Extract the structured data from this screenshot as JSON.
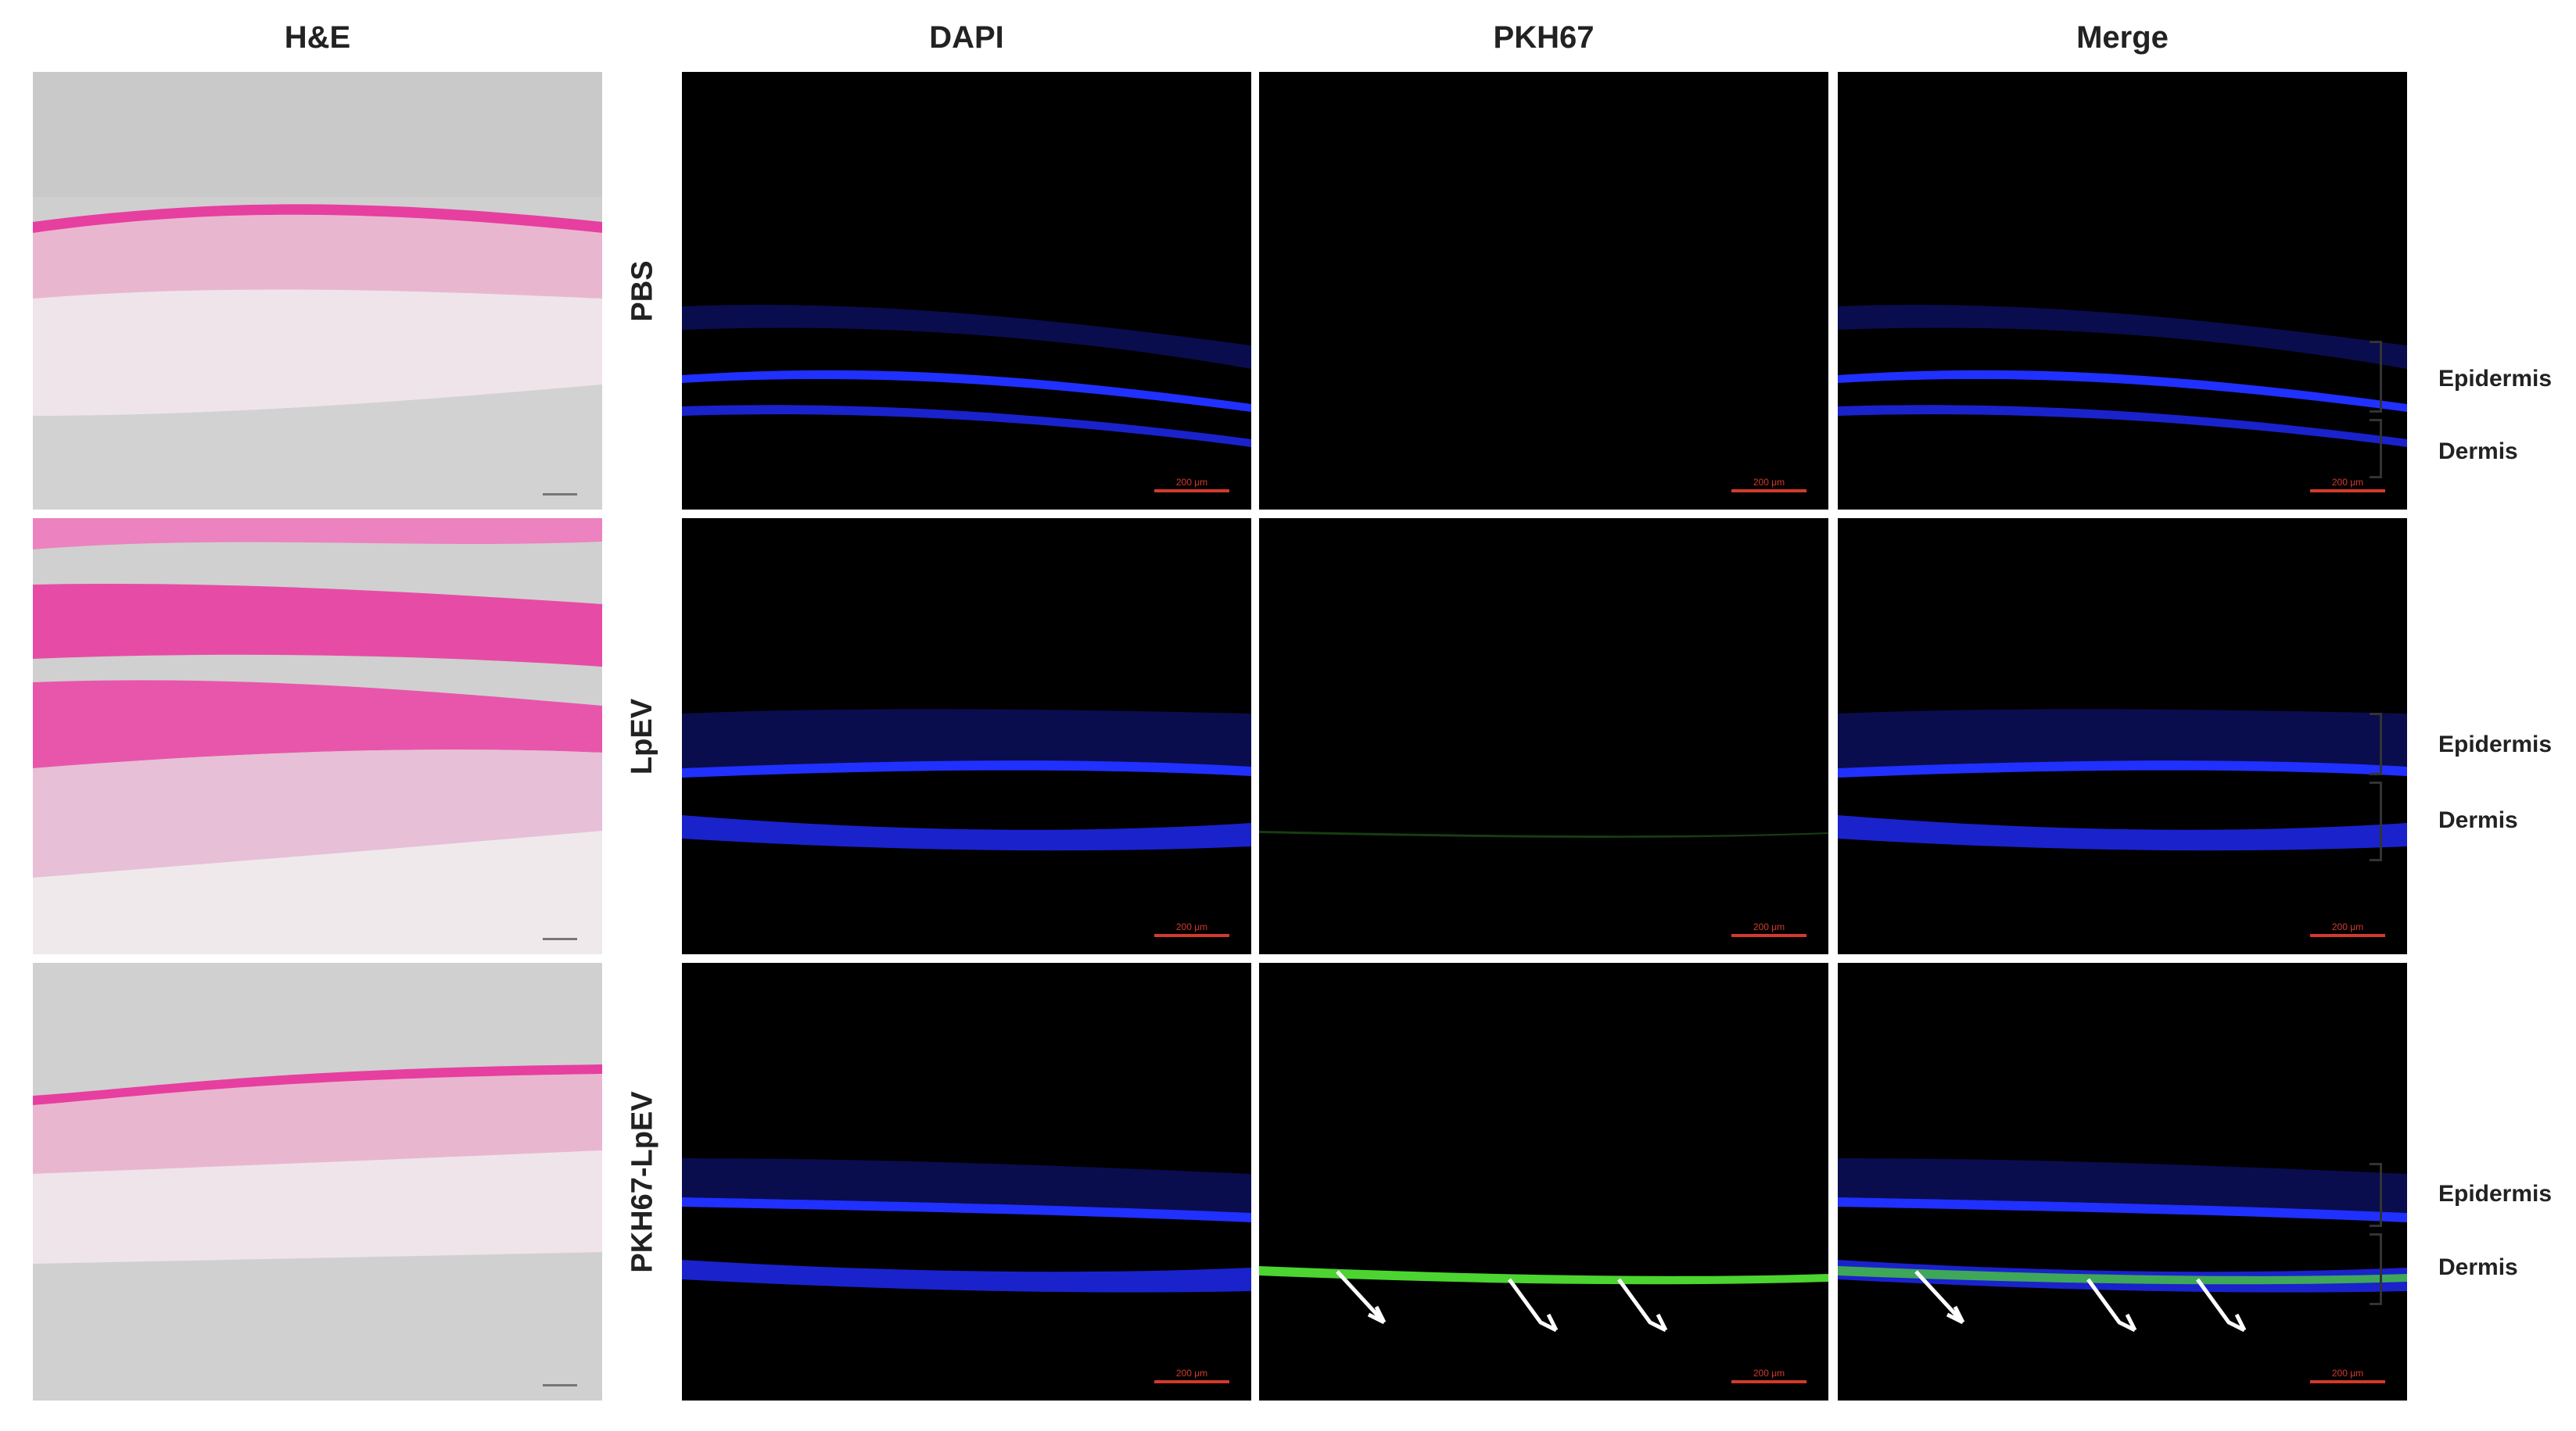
{
  "columns": {
    "he": "H&E",
    "dapi": "DAPI",
    "pkh67": "PKH67",
    "merge": "Merge"
  },
  "rows": [
    {
      "label": "PBS",
      "annotations": [
        "Epidermis",
        "Dermis"
      ]
    },
    {
      "label": "LpEV",
      "annotations": [
        "Epidermis",
        "Dermis"
      ]
    },
    {
      "label": "PKH67-LpEV",
      "annotations": [
        "Epidermis",
        "Dermis"
      ]
    }
  ],
  "scale_bar_text": "200 μm",
  "colors": {
    "dapi": "#2233ff",
    "pkh67": "#4cd431",
    "he_pink": "#e63fa0",
    "he_bg": "#cfcfcf",
    "scale_bar": "#d23a2e"
  }
}
